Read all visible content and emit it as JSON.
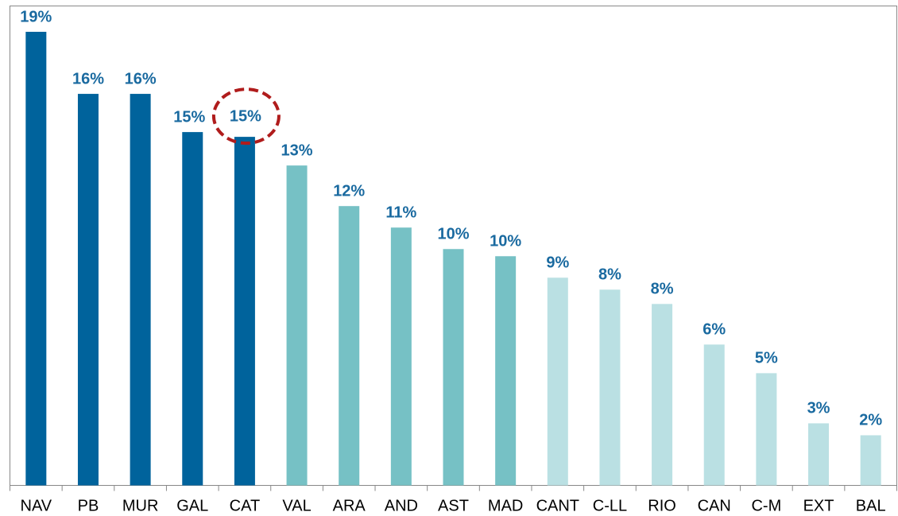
{
  "chart_data": {
    "type": "bar",
    "categories": [
      "NAV",
      "PB",
      "MUR",
      "GAL",
      "CAT",
      "VAL",
      "ARA",
      "AND",
      "AST",
      "MAD",
      "CANT",
      "C-LL",
      "RIO",
      "CAN",
      "C-M",
      "EXT",
      "BAL"
    ],
    "values": [
      19.0,
      16.4,
      16.4,
      14.8,
      14.6,
      13.4,
      11.7,
      10.8,
      9.9,
      9.6,
      8.7,
      8.2,
      7.6,
      5.9,
      4.7,
      2.6,
      2.1
    ],
    "value_labels": [
      "19%",
      "16%",
      "16%",
      "15%",
      "15%",
      "13%",
      "12%",
      "11%",
      "10%",
      "10%",
      "9%",
      "8%",
      "8%",
      "6%",
      "5%",
      "3%",
      "2%"
    ],
    "colors": [
      "#00639c",
      "#00639c",
      "#00639c",
      "#00639c",
      "#00639c",
      "#76c1c5",
      "#76c1c5",
      "#76c1c5",
      "#76c1c5",
      "#76c1c5",
      "#bae0e3",
      "#bae0e3",
      "#bae0e3",
      "#bae0e3",
      "#bae0e3",
      "#bae0e3",
      "#bae0e3"
    ],
    "highlight": 4,
    "grid": false
  }
}
